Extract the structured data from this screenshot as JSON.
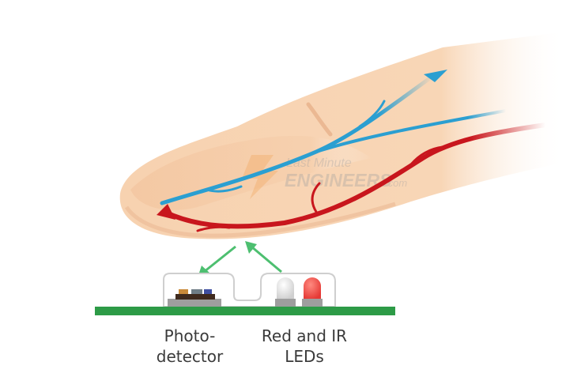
{
  "watermark": {
    "line1": "Last Minute",
    "line2": "ENGINEERS",
    "suffix": ".com"
  },
  "labels": {
    "photodetector": [
      "Photo-",
      "detector"
    ],
    "leds": [
      "Red and IR",
      "LEDs"
    ]
  },
  "colors": {
    "skin": "#f7d2b0",
    "skin_shadow": "#e9b690",
    "vein": "#2b9fd1",
    "artery": "#c8161d",
    "arrow": "#4dbf70",
    "board": "#2d9b47",
    "red_led": "#e53935",
    "ir_led": "#d9d9d9"
  }
}
